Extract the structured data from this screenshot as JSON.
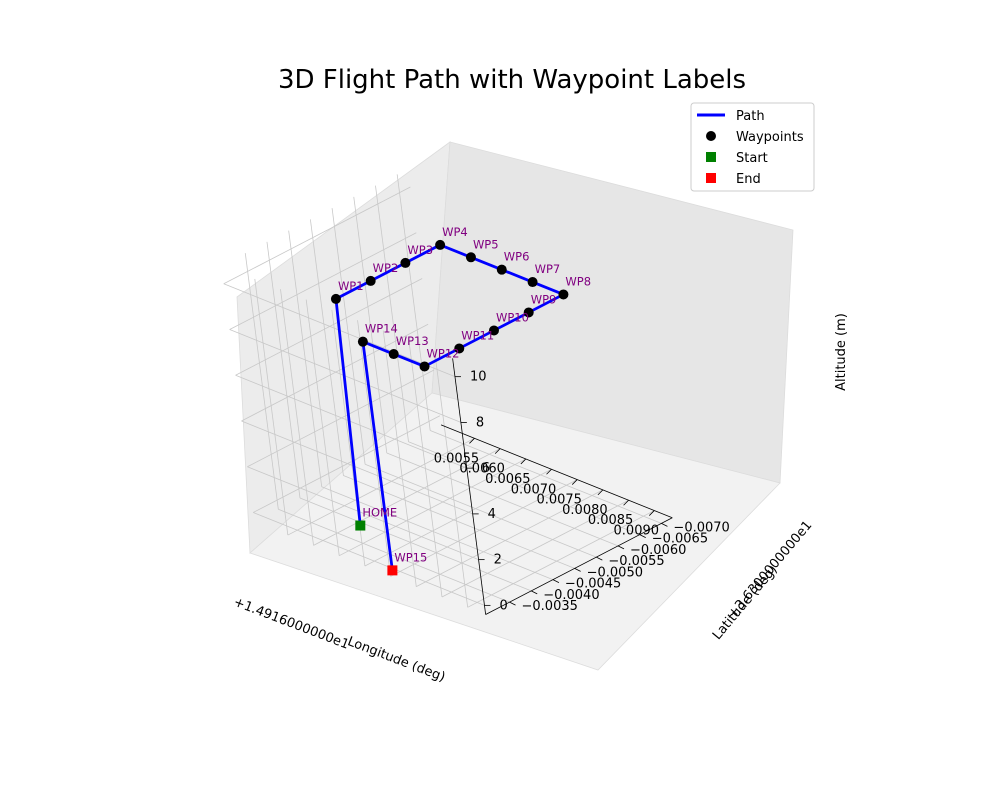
{
  "chart_data": {
    "type": "line3d",
    "title": "3D Flight Path with Waypoint Labels",
    "xlabel": "Longitude (deg)",
    "ylabel": "Latitude (deg)",
    "zlabel": "Altitude (m)",
    "x_offset_label": "+1.4916000000e1",
    "y_offset_label": "+3.6300000000e1",
    "x_ticks": [
      "0.0055",
      "0.0060",
      "0.0065",
      "0.0070",
      "0.0075",
      "0.0080",
      "0.0085",
      "0.0090"
    ],
    "y_ticks": [
      "−0.0035",
      "−0.0040",
      "−0.0045",
      "−0.0050",
      "−0.0055",
      "−0.0060",
      "−0.0065",
      "−0.0070"
    ],
    "z_ticks": [
      "0",
      "2",
      "4",
      "6",
      "8",
      "10"
    ],
    "legend": {
      "placement": "top-right",
      "entries": [
        {
          "label": "Path",
          "kind": "line",
          "color": "#0000ff"
        },
        {
          "label": "Waypoints",
          "kind": "circle",
          "color": "#000000"
        },
        {
          "label": "Start",
          "kind": "square",
          "color": "#008000"
        },
        {
          "label": "End",
          "kind": "square",
          "color": "#ff0000"
        }
      ]
    },
    "points": [
      {
        "label": "HOME",
        "lon": 0.0063,
        "lat": -0.0037,
        "alt": 0
      },
      {
        "label": "WP1",
        "lon": 0.0064,
        "lat": -0.0037,
        "alt": 10
      },
      {
        "label": "WP2",
        "lon": 0.0064,
        "lat": -0.0045,
        "alt": 10
      },
      {
        "label": "WP3",
        "lon": 0.0064,
        "lat": -0.0053,
        "alt": 10
      },
      {
        "label": "WP4",
        "lon": 0.0064,
        "lat": -0.0061,
        "alt": 10
      },
      {
        "label": "WP5",
        "lon": 0.007,
        "lat": -0.0061,
        "alt": 10
      },
      {
        "label": "WP6",
        "lon": 0.0076,
        "lat": -0.0061,
        "alt": 10
      },
      {
        "label": "WP7",
        "lon": 0.0082,
        "lat": -0.0061,
        "alt": 10
      },
      {
        "label": "WP8",
        "lon": 0.0088,
        "lat": -0.0061,
        "alt": 10
      },
      {
        "label": "WP9",
        "lon": 0.0088,
        "lat": -0.0053,
        "alt": 10
      },
      {
        "label": "WP10",
        "lon": 0.0088,
        "lat": -0.0045,
        "alt": 10
      },
      {
        "label": "WP11",
        "lon": 0.0088,
        "lat": -0.0037,
        "alt": 10
      },
      {
        "label": "WP12",
        "lon": 0.0088,
        "lat": -0.0029,
        "alt": 10
      },
      {
        "label": "WP13",
        "lon": 0.0082,
        "lat": -0.0029,
        "alt": 10
      },
      {
        "label": "WP14",
        "lon": 0.0076,
        "lat": -0.0029,
        "alt": 10
      },
      {
        "label": "WP15",
        "lon": 0.0076,
        "lat": -0.0029,
        "alt": 0
      }
    ],
    "colors": {
      "path": "#0000ff",
      "waypoint": "#000000",
      "start": "#008000",
      "end": "#ff0000",
      "label": "#800080"
    },
    "grid": true
  }
}
